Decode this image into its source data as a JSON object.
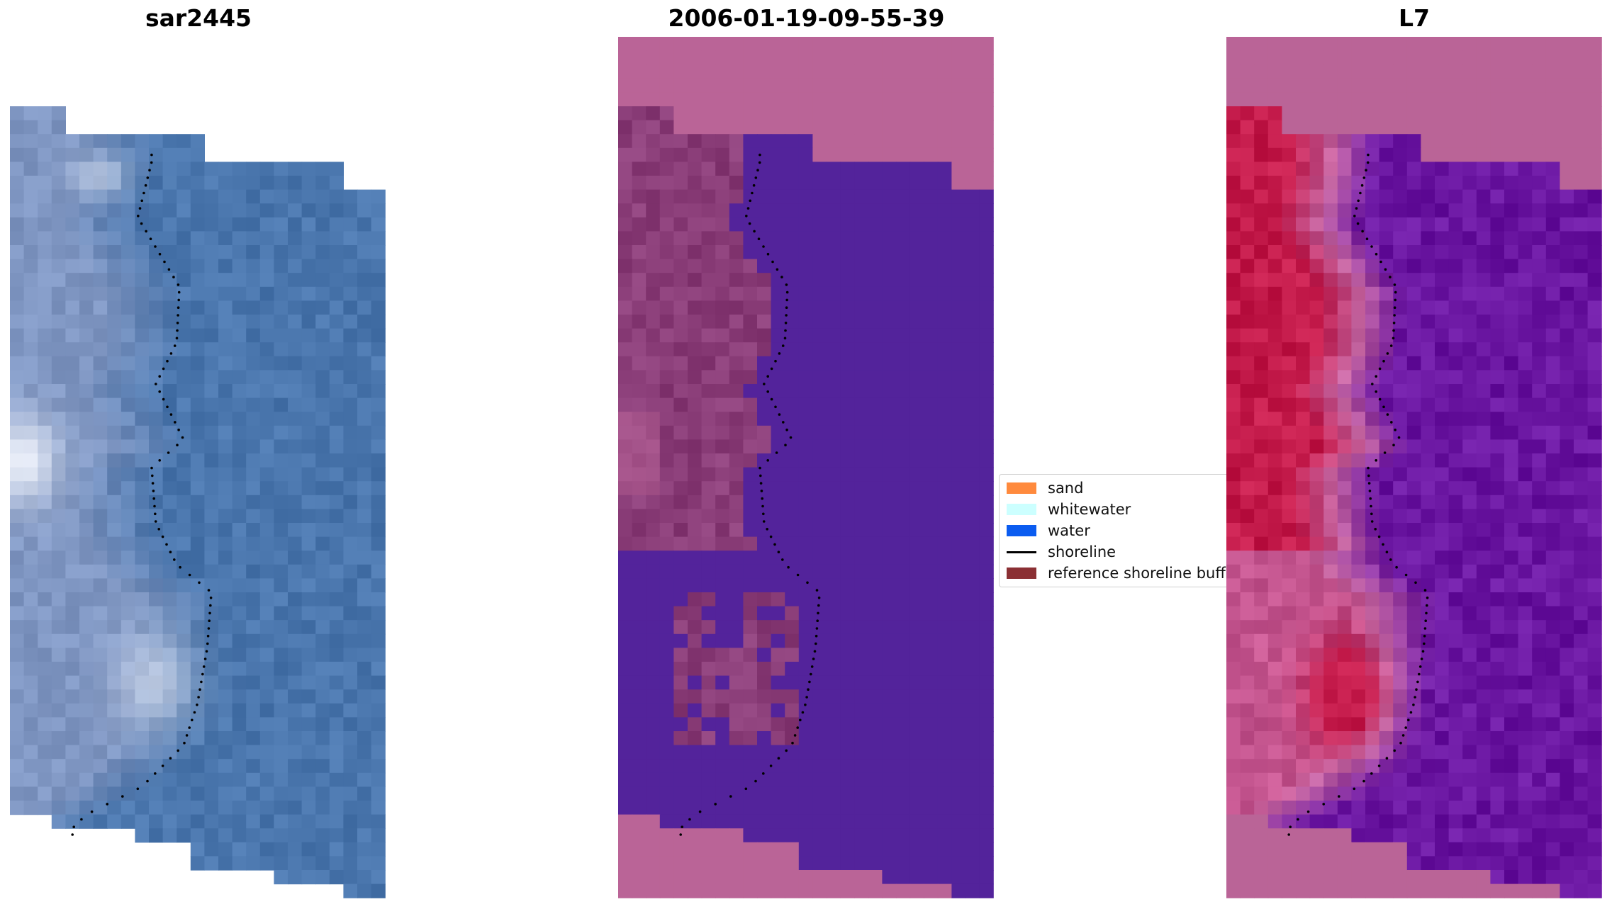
{
  "panels": [
    {
      "title": "sar2445"
    },
    {
      "title": "2006-01-19-09-55-39"
    },
    {
      "title": "L7"
    }
  ],
  "legend": {
    "items": [
      {
        "label": "sand",
        "color": "#ff8a3d",
        "kind": "patch"
      },
      {
        "label": "whitewater",
        "color": "#ccffff",
        "kind": "patch"
      },
      {
        "label": "water",
        "color": "#0b5cf0",
        "kind": "patch"
      },
      {
        "label": "shoreline",
        "color": "#000000",
        "kind": "line"
      },
      {
        "label": "reference shoreline buffer",
        "color": "#8b3034",
        "kind": "patch"
      }
    ]
  },
  "colors": {
    "rgb_water": "#4a76ad",
    "rgb_land": "#7f96c2",
    "classified_water": "#53239b",
    "classified_land": "#8a3d78",
    "nodata_pink": "#ba6497",
    "mndwi_high": "#c31a4a",
    "mndwi_low": "#6a16a1",
    "shoreline_dots": "#000000"
  }
}
